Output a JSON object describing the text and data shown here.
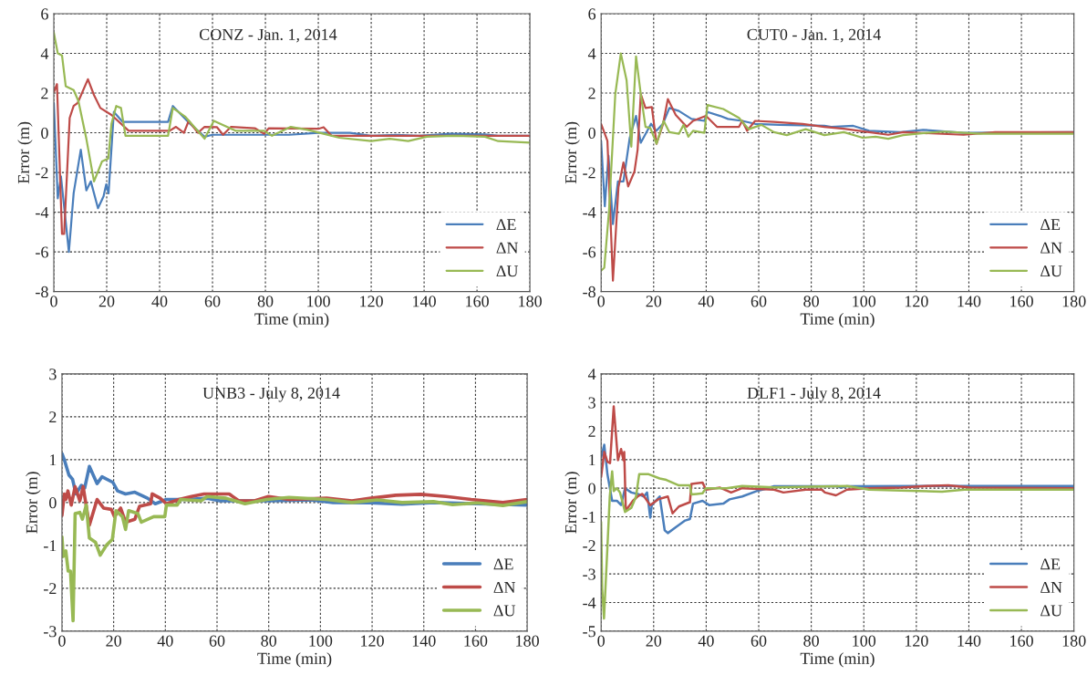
{
  "chart_data": [
    {
      "type": "line",
      "title": "CONZ - Jan. 1, 2014",
      "xlabel": "Time (min)",
      "ylabel": "Error (m)",
      "xlim": [
        0,
        180
      ],
      "xticks": [
        0,
        20,
        40,
        60,
        80,
        100,
        120,
        140,
        160,
        180
      ],
      "ylim": [
        -8,
        6
      ],
      "yticks": [
        -8,
        -6,
        -4,
        -2,
        0,
        2,
        4,
        6
      ],
      "grid": true,
      "legend": "bottom right",
      "series": [
        {
          "name": "ΔE",
          "color": "#4a7ebb",
          "x": [
            0,
            1.5,
            2.7,
            5.7,
            7.5,
            10.2,
            12.3,
            14,
            16.7,
            18.8,
            19.8,
            20.7,
            22.7,
            26,
            43.2,
            45,
            51.5,
            57,
            60,
            89,
            100,
            112,
            120,
            129.5,
            138,
            150,
            163,
            168,
            180
          ],
          "values": [
            1.5,
            -3.3,
            -2.2,
            -6.0,
            -3.05,
            -0.85,
            -2.9,
            -2.45,
            -3.8,
            -3.2,
            -2.6,
            -3.05,
            1.05,
            0.55,
            0.55,
            1.35,
            0.45,
            -0.2,
            -0.1,
            -0.1,
            0,
            0,
            -0.15,
            -0.1,
            -0.15,
            -0.05,
            -0.08,
            -0.15,
            -0.15
          ]
        },
        {
          "name": "ΔN",
          "color": "#be4b48",
          "x": [
            0,
            1.2,
            3.1,
            3.9,
            6,
            7.5,
            9,
            12.9,
            15.2,
            17.6,
            21.8,
            28.3,
            43.8,
            46.2,
            49.2,
            51,
            54.5,
            57,
            61.7,
            64,
            67,
            76,
            79.5,
            81.3,
            100,
            102,
            105,
            120,
            180
          ],
          "values": [
            2.05,
            2.45,
            -5.1,
            -5.1,
            0.75,
            1.35,
            1.5,
            2.7,
            1.9,
            1.25,
            0.9,
            0.1,
            0.1,
            0.3,
            0.0,
            0.6,
            0,
            0.3,
            0.28,
            -0.1,
            0.3,
            0.23,
            -0.05,
            0.23,
            0.2,
            0.28,
            -0.15,
            -0.15,
            -0.15
          ]
        },
        {
          "name": "ΔU",
          "color": "#98b954",
          "x": [
            0,
            1.5,
            3.1,
            4.5,
            7.5,
            9.3,
            12.3,
            15.2,
            18.2,
            20.6,
            21.8,
            23.6,
            25.4,
            27.1,
            43.2,
            45,
            49.8,
            57,
            60.5,
            68.8,
            79.5,
            82.5,
            89.6,
            96,
            102,
            108,
            120,
            127,
            134,
            141,
            151,
            163,
            168,
            180
          ],
          "values": [
            5.05,
            4.0,
            3.9,
            2.35,
            2.15,
            1.6,
            -0.3,
            -2.45,
            -1.45,
            -1.3,
            0.45,
            1.35,
            1.25,
            -0.15,
            -0.15,
            1.25,
            0.8,
            -0.3,
            0.6,
            0.1,
            0.1,
            -0.15,
            0.3,
            0.15,
            -0.05,
            -0.25,
            -0.42,
            -0.3,
            -0.42,
            -0.2,
            -0.15,
            -0.2,
            -0.42,
            -0.5
          ]
        }
      ]
    },
    {
      "type": "line",
      "title": "CUT0 - Jan. 1, 2014",
      "xlabel": "Time (min)",
      "ylabel": "Error (m)",
      "xlim": [
        0,
        180
      ],
      "xticks": [
        0,
        20,
        40,
        60,
        80,
        100,
        120,
        140,
        160,
        180
      ],
      "ylim": [
        -8,
        6
      ],
      "yticks": [
        -8,
        -6,
        -4,
        -2,
        0,
        2,
        4,
        6
      ],
      "grid": true,
      "legend": "bottom right",
      "series": [
        {
          "name": "ΔE",
          "color": "#4a7ebb",
          "x": [
            0,
            1.4,
            2.8,
            4.5,
            6.4,
            8.5,
            10.9,
            13.3,
            15.1,
            19,
            21,
            23.5,
            26,
            29.6,
            34.4,
            39.3,
            40.5,
            45.3,
            48.3,
            53.7,
            58.6,
            68,
            85,
            87.6,
            96,
            102,
            114,
            122.6,
            138,
            180
          ],
          "values": [
            -0.4,
            -3.7,
            -1.15,
            -4.6,
            -2.45,
            -2.45,
            -0.25,
            0.85,
            -0.5,
            0.45,
            0.1,
            0.45,
            1.25,
            1.1,
            0.7,
            0.6,
            1.05,
            0.85,
            0.7,
            0.6,
            0.45,
            0.4,
            0.35,
            0.3,
            0.35,
            0.1,
            0.03,
            0.15,
            0,
            0.03
          ]
        },
        {
          "name": "ΔN",
          "color": "#be4b48",
          "x": [
            0,
            2.4,
            4.5,
            6.6,
            8.5,
            10.3,
            12.7,
            13.9,
            15.1,
            16.9,
            19.3,
            21.1,
            23.6,
            25.4,
            28.4,
            32.6,
            35,
            39.9,
            44.1,
            52.5,
            53.7,
            55.6,
            58.6,
            65.8,
            76.7,
            85,
            92.4,
            102,
            109.3,
            115,
            138,
            150,
            180
          ],
          "values": [
            0.45,
            -0.4,
            -7.45,
            -2.75,
            -1.5,
            -2.7,
            -1.95,
            -0.85,
            1.95,
            1.25,
            1.3,
            -0.55,
            0.45,
            1.7,
            0.9,
            0.3,
            0.6,
            0.85,
            0.3,
            0.3,
            0.6,
            0.1,
            0.6,
            0.55,
            0.45,
            0.3,
            0.2,
            0.03,
            -0.1,
            0.03,
            -0.1,
            0.03,
            0.03
          ]
        },
        {
          "name": "ΔU",
          "color": "#98b954",
          "x": [
            0,
            1.2,
            3,
            5.4,
            7.5,
            9.7,
            11.5,
            13.3,
            15.1,
            16.9,
            18.7,
            21.1,
            23.8,
            26,
            29.6,
            31.4,
            33.2,
            35,
            39.3,
            40.5,
            46.5,
            52.5,
            56.2,
            61,
            65.8,
            70.7,
            77.9,
            85,
            92.4,
            99.6,
            104.5,
            109.3,
            115,
            123.8,
            131,
            144.3,
            180
          ],
          "values": [
            -6.95,
            -6.8,
            -3.95,
            1.95,
            4.0,
            2.65,
            -0.7,
            3.85,
            1.95,
            0.3,
            0.25,
            -0.55,
            0.6,
            0.03,
            -0.05,
            0.4,
            -0.2,
            0.1,
            0,
            1.4,
            1.2,
            0.75,
            0.18,
            0.4,
            0.03,
            -0.12,
            0.18,
            -0.12,
            0.03,
            -0.25,
            -0.2,
            -0.3,
            -0.12,
            0,
            0.06,
            -0.05,
            -0.05
          ]
        }
      ]
    },
    {
      "type": "line",
      "title": "UNB3 - July 8, 2014",
      "xlabel": "Time (min)",
      "ylabel": "Error (m)",
      "xlim": [
        0,
        180
      ],
      "xticks": [
        0,
        20,
        40,
        60,
        80,
        100,
        120,
        140,
        160,
        180
      ],
      "ylim": [
        -3,
        3
      ],
      "yticks": [
        -3,
        -2,
        -1,
        0,
        1,
        2,
        3
      ],
      "grid": true,
      "legend": "bottom right",
      "series": [
        {
          "name": "ΔE",
          "color": "#4a7ebb",
          "x": [
            0,
            0.9,
            2.7,
            4.1,
            5.4,
            7.5,
            8.8,
            10.6,
            13.6,
            15.5,
            19.7,
            21.5,
            24.6,
            28.2,
            33.1,
            36.1,
            40.4,
            48.9,
            56.2,
            61,
            80.5,
            96.3,
            104.9,
            119.5,
            131.6,
            143.8,
            160.8,
            180
          ],
          "values": [
            1.14,
            1.0,
            0.64,
            0.54,
            0.2,
            0.4,
            0.34,
            0.84,
            0.44,
            0.6,
            0.47,
            0.27,
            0.2,
            0.24,
            0.1,
            -0.03,
            0.07,
            0.07,
            0.1,
            0.04,
            0.04,
            0.06,
            0.0,
            -0.01,
            -0.04,
            0.0,
            -0.03,
            -0.06
          ]
        },
        {
          "name": "ΔN",
          "color": "#be4b48",
          "x": [
            0,
            0.9,
            1.5,
            2.3,
            3.6,
            5.1,
            6.9,
            8.2,
            10.6,
            13.6,
            16.1,
            19.1,
            20.3,
            22.7,
            24.6,
            28.2,
            30,
            34.3,
            34.9,
            38,
            40.4,
            45.3,
            50.1,
            55,
            64.7,
            68.4,
            74.5,
            79.9,
            87.8,
            102.4,
            112.2,
            119.5,
            129.2,
            138.9,
            148.6,
            158.3,
            170.6,
            180
          ],
          "values": [
            -0.3,
            0.2,
            0.07,
            0.27,
            -0.06,
            0.37,
            0.04,
            0.37,
            -0.53,
            0.07,
            -0.13,
            -0.16,
            -0.33,
            -0.13,
            -0.46,
            -0.39,
            -0.09,
            -0.03,
            0.2,
            0.1,
            -0.03,
            0.07,
            0.14,
            0.2,
            0.2,
            0.04,
            0.04,
            0.14,
            0.07,
            0.1,
            0.04,
            0.1,
            0.17,
            0.19,
            0.14,
            0.07,
            0.0,
            0.07
          ]
        },
        {
          "name": "ΔU",
          "color": "#98b954",
          "x": [
            0,
            0.5,
            1.5,
            2.4,
            3.3,
            4.3,
            5.1,
            6.9,
            7.9,
            9.4,
            10.6,
            13,
            14.8,
            17.3,
            19.5,
            20.9,
            23.4,
            24.6,
            25.8,
            29.4,
            30.7,
            35.5,
            39.8,
            40.4,
            44.6,
            45.9,
            53.8,
            56.2,
            63.5,
            70.8,
            79.3,
            87.8,
            102.4,
            112.2,
            122,
            131.6,
            143.8,
            151.1,
            160.8,
            170.6,
            180
          ],
          "values": [
            -0.8,
            -1.26,
            -1.13,
            -1.6,
            -1.6,
            -2.76,
            -0.26,
            -0.23,
            -0.39,
            -0.06,
            -0.83,
            -0.93,
            -1.23,
            -0.99,
            -0.86,
            -0.19,
            -0.33,
            -0.63,
            -0.19,
            -0.26,
            -0.46,
            -0.33,
            -0.33,
            -0.06,
            -0.06,
            0.07,
            0.04,
            0.14,
            0.1,
            -0.03,
            0.07,
            0.12,
            0.07,
            0.0,
            0.06,
            0.0,
            0.02,
            -0.05,
            -0.01,
            -0.07,
            0.02
          ]
        }
      ]
    },
    {
      "type": "line",
      "title": "DLF1 - July 8, 2014",
      "xlabel": "Time (min)",
      "ylabel": "Error (m)",
      "xlim": [
        0,
        180
      ],
      "xticks": [
        0,
        20,
        40,
        60,
        80,
        100,
        120,
        140,
        160,
        180
      ],
      "ylim": [
        -5,
        4
      ],
      "yticks": [
        -5,
        -4,
        -3,
        -2,
        -1,
        0,
        1,
        2,
        3,
        4
      ],
      "grid": true,
      "legend": "bottom right",
      "series": [
        {
          "name": "ΔE",
          "color": "#4a7ebb",
          "x": [
            0,
            1.2,
            2.4,
            4.2,
            6,
            7.6,
            9.1,
            11.5,
            13.9,
            16.3,
            17.5,
            18.7,
            19.3,
            22.3,
            24.2,
            25.4,
            28.4,
            32,
            33.8,
            35,
            38.6,
            41.1,
            46.5,
            48.9,
            53.7,
            59.2,
            63.4,
            65.8,
            90,
            91.2,
            93.6,
            180
          ],
          "values": [
            1.08,
            1.52,
            0.49,
            -0.44,
            -0.44,
            -0.59,
            0,
            -0.15,
            -0.2,
            -0.29,
            -0.15,
            -1.03,
            -0.59,
            -0.29,
            -1.47,
            -1.57,
            -1.37,
            -1.13,
            -1.08,
            -0.54,
            -0.44,
            -0.59,
            -0.54,
            -0.39,
            -0.29,
            -0.1,
            0,
            0.07,
            0.07,
            0.02,
            0.07,
            0.08
          ]
        },
        {
          "name": "ΔN",
          "color": "#be4b48",
          "x": [
            0,
            1.2,
            2.4,
            3.4,
            4.8,
            6.4,
            7.6,
            8.5,
            8.8,
            9.4,
            12.1,
            13.9,
            15.7,
            18.7,
            21.7,
            25.4,
            27.2,
            29.6,
            33.8,
            34.4,
            38.6,
            39.9,
            45.3,
            49.5,
            53.7,
            65.8,
            69.4,
            77.9,
            84,
            85.2,
            89.4,
            93.6,
            102,
            114.1,
            123.8,
            132.2,
            140.6,
            180
          ],
          "values": [
            0.39,
            1.27,
            0.93,
            0.88,
            2.86,
            0.98,
            1.37,
            0.98,
            1.27,
            -0.78,
            -0.44,
            -0.29,
            -0.2,
            -0.59,
            -0.39,
            -0.29,
            -0.88,
            -0.64,
            -0.49,
            0.15,
            0.2,
            -0.05,
            0.02,
            -0.15,
            0,
            -0.05,
            -0.15,
            -0.05,
            -0.05,
            -0.15,
            -0.25,
            -0.05,
            0,
            0.02,
            0.08,
            0.1,
            0.02,
            0
          ]
        },
        {
          "name": "ΔU",
          "color": "#98b954",
          "x": [
            0,
            0.4,
            1.1,
            2.4,
            3.3,
            4.2,
            4.8,
            6,
            7.2,
            9.1,
            11.5,
            13.3,
            14.5,
            18.1,
            22.3,
            24.8,
            29.6,
            33.8,
            34.4,
            38.6,
            39.9,
            47.7,
            53.7,
            65.8,
            93.6,
            102,
            114.1,
            129.8,
            138.3,
            180
          ],
          "values": [
            -1.18,
            -3.53,
            -4.56,
            -2.06,
            -0.29,
            0.59,
            -0.1,
            0,
            -0.15,
            -0.83,
            -0.69,
            -0.29,
            0.49,
            0.49,
            0.34,
            0.29,
            0.1,
            0.1,
            -0.22,
            -0.18,
            0,
            0,
            0.08,
            0.03,
            0.08,
            -0.05,
            -0.08,
            -0.12,
            -0.05,
            -0.05
          ]
        }
      ]
    }
  ]
}
